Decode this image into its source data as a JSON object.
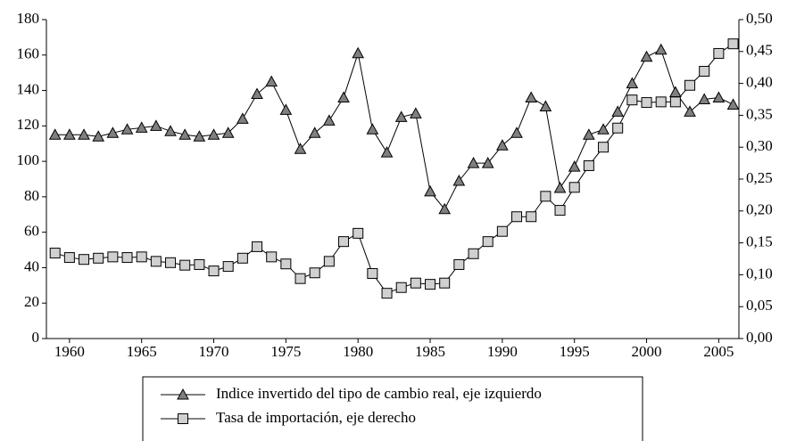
{
  "chart_data": {
    "type": "line",
    "x": [
      1959,
      1960,
      1961,
      1962,
      1963,
      1964,
      1965,
      1966,
      1967,
      1968,
      1969,
      1970,
      1971,
      1972,
      1973,
      1974,
      1975,
      1976,
      1977,
      1978,
      1979,
      1980,
      1981,
      1982,
      1983,
      1984,
      1985,
      1986,
      1987,
      1988,
      1989,
      1990,
      1991,
      1992,
      1993,
      1994,
      1995,
      1996,
      1997,
      1998,
      1999,
      2000,
      2001,
      2002,
      2003,
      2004,
      2005,
      2006
    ],
    "xlim": [
      1958.4,
      2006.4
    ],
    "xticks": [
      1960,
      1965,
      1970,
      1975,
      1980,
      1985,
      1990,
      1995,
      2000,
      2005
    ],
    "ylim": [
      0,
      180
    ],
    "yticks": [
      0,
      20,
      40,
      60,
      80,
      100,
      120,
      140,
      160,
      180
    ],
    "y2lim": [
      0,
      0.5
    ],
    "y2ticks": [
      {
        "value": 0,
        "label": "0,00"
      },
      {
        "value": 0.05,
        "label": "0,05"
      },
      {
        "value": 0.1,
        "label": "0,10"
      },
      {
        "value": 0.15,
        "label": "0,15"
      },
      {
        "value": 0.2,
        "label": "0,20"
      },
      {
        "value": 0.25,
        "label": "0,25"
      },
      {
        "value": 0.3,
        "label": "0,30"
      },
      {
        "value": 0.35,
        "label": "0,35"
      },
      {
        "value": 0.4,
        "label": "0,40"
      },
      {
        "value": 0.45,
        "label": "0,45"
      },
      {
        "value": 0.5,
        "label": "0,50"
      }
    ],
    "series": [
      {
        "name": "Indice invertido del tipo de cambio real, eje  izquierdo",
        "color": "#808080",
        "marker": "triangle",
        "values": [
          115,
          115,
          115,
          114,
          116,
          118,
          119,
          120,
          117,
          115,
          114,
          115,
          116,
          124,
          138,
          145,
          129,
          107,
          116,
          123,
          136,
          161,
          118,
          105,
          125,
          127,
          83,
          73,
          89,
          99,
          99,
          109,
          116,
          136,
          131,
          85,
          97,
          115,
          118,
          128,
          144,
          159,
          163,
          139,
          128,
          135,
          136,
          132
        ]
      },
      {
        "name": "Tasa de importación, eje  derecho",
        "color": "#d0d0d0",
        "marker": "square",
        "axis": "y2",
        "values": [
          0.134,
          0.127,
          0.124,
          0.126,
          0.128,
          0.127,
          0.128,
          0.121,
          0.119,
          0.115,
          0.116,
          0.106,
          0.113,
          0.126,
          0.144,
          0.128,
          0.117,
          0.094,
          0.103,
          0.121,
          0.152,
          0.165,
          0.102,
          0.071,
          0.08,
          0.087,
          0.085,
          0.087,
          0.116,
          0.133,
          0.152,
          0.168,
          0.191,
          0.191,
          0.223,
          0.201,
          0.237,
          0.271,
          0.3,
          0.33,
          0.374,
          0.37,
          0.371,
          0.371,
          0.397,
          0.419,
          0.447,
          0.462
        ]
      }
    ]
  }
}
